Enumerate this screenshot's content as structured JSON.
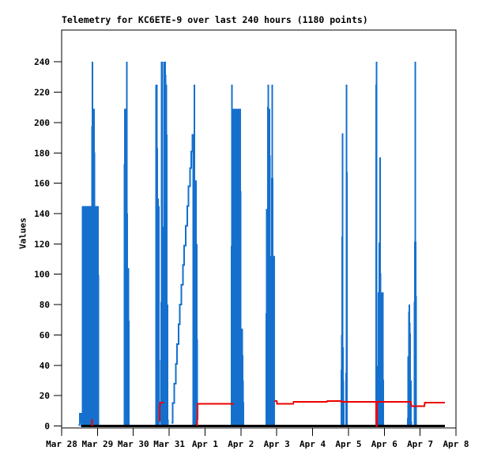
{
  "chart_data": {
    "type": "line",
    "title": "Telemetry for KC6ETE-9 over last 240 hours (1180 points)",
    "ylabel": "Values",
    "xlabel": "",
    "grid": false,
    "legend": "none",
    "ylim": [
      0,
      261
    ],
    "x_unit": "days since Mar 28",
    "xlim_days": [
      0,
      11
    ],
    "y_ticks": [
      0,
      20,
      40,
      60,
      80,
      100,
      120,
      140,
      160,
      180,
      200,
      220,
      240
    ],
    "x_tick_labels": [
      "Mar 28",
      "Mar 29",
      "Mar 30",
      "Mar 31",
      "Apr 1",
      "Apr 2",
      "Apr 3",
      "Apr 4",
      "Apr 5",
      "Apr 6",
      "Apr 7",
      "Apr 8"
    ],
    "colors": {
      "blue_channel": "#1570CD",
      "red_channel": "#EE0000",
      "black_channel": "#000000"
    },
    "series": [
      {
        "name": "channel-1-blue",
        "color": "#1570CD",
        "stroke_width": 2,
        "segments": [
          [
            [
              0.5,
              0
            ],
            [
              0.51,
              8
            ],
            [
              0.54,
              8
            ],
            [
              0.55,
              0
            ],
            [
              0.585,
              0
            ],
            [
              0.59,
              145
            ],
            [
              0.6,
              0
            ],
            [
              0.625,
              0
            ],
            [
              0.63,
              145
            ],
            [
              0.645,
              0
            ],
            [
              0.66,
              145
            ],
            [
              0.675,
              0
            ],
            [
              0.7,
              0
            ],
            [
              0.71,
              145
            ],
            [
              0.72,
              0
            ],
            [
              0.735,
              145
            ],
            [
              0.75,
              0
            ],
            [
              0.765,
              145
            ],
            [
              0.78,
              0
            ],
            [
              0.795,
              145
            ],
            [
              0.81,
              0
            ],
            [
              0.825,
              145
            ],
            [
              0.84,
              0
            ],
            [
              0.85,
              145
            ],
            [
              0.858,
              240
            ],
            [
              0.866,
              145
            ],
            [
              0.875,
              0
            ],
            [
              0.885,
              209
            ],
            [
              0.895,
              0
            ],
            [
              0.905,
              209
            ],
            [
              0.915,
              145
            ],
            [
              0.925,
              0
            ],
            [
              0.94,
              145
            ],
            [
              0.95,
              0
            ],
            [
              0.965,
              145
            ],
            [
              0.975,
              0
            ],
            [
              0.99,
              145
            ],
            [
              1.0,
              0
            ],
            [
              1.015,
              145
            ],
            [
              1.03,
              0
            ]
          ],
          [
            [
              1.75,
              0
            ],
            [
              1.76,
              209
            ],
            [
              1.77,
              0
            ],
            [
              1.78,
              209
            ],
            [
              1.79,
              0
            ],
            [
              1.8,
              209
            ],
            [
              1.805,
              120
            ],
            [
              1.81,
              0
            ],
            [
              1.82,
              240
            ],
            [
              1.83,
              0
            ],
            [
              1.845,
              104
            ],
            [
              1.855,
              0
            ],
            [
              1.865,
              104
            ],
            [
              1.875,
              0
            ]
          ],
          [
            [
              2.63,
              0
            ],
            [
              2.64,
              225
            ],
            [
              2.65,
              0
            ],
            [
              2.66,
              225
            ],
            [
              2.67,
              0
            ],
            [
              2.685,
              150
            ],
            [
              2.695,
              0
            ],
            [
              2.71,
              145
            ],
            [
              2.72,
              0
            ],
            [
              2.78,
              0
            ],
            [
              2.79,
              240
            ],
            [
              2.8,
              0
            ],
            [
              2.81,
              240
            ],
            [
              2.82,
              0
            ],
            [
              2.855,
              0
            ],
            [
              2.865,
              240
            ],
            [
              2.875,
              0
            ],
            [
              2.885,
              240
            ],
            [
              2.9,
              225
            ],
            [
              2.91,
              0
            ],
            [
              2.925,
              225
            ],
            [
              2.935,
              0
            ],
            [
              2.95,
              80
            ],
            [
              2.96,
              0
            ]
          ],
          [
            [
              3.06,
              2
            ],
            [
              3.1,
              2
            ],
            [
              3.1,
              15
            ],
            [
              3.14,
              15
            ],
            [
              3.14,
              28
            ],
            [
              3.18,
              28
            ],
            [
              3.18,
              41
            ],
            [
              3.22,
              41
            ],
            [
              3.22,
              54
            ],
            [
              3.26,
              54
            ],
            [
              3.26,
              67
            ],
            [
              3.3,
              67
            ],
            [
              3.3,
              80
            ],
            [
              3.34,
              80
            ],
            [
              3.34,
              93
            ],
            [
              3.38,
              93
            ],
            [
              3.38,
              106
            ],
            [
              3.42,
              106
            ],
            [
              3.42,
              119
            ],
            [
              3.46,
              119
            ],
            [
              3.46,
              132
            ],
            [
              3.5,
              132
            ],
            [
              3.5,
              145
            ],
            [
              3.54,
              145
            ],
            [
              3.54,
              158
            ],
            [
              3.58,
              158
            ],
            [
              3.58,
              170
            ],
            [
              3.62,
              170
            ],
            [
              3.62,
              181
            ],
            [
              3.65,
              181
            ],
            [
              3.65,
              192
            ],
            [
              3.67,
              192
            ],
            [
              3.675,
              0
            ],
            [
              3.685,
              162
            ],
            [
              3.695,
              0
            ],
            [
              3.705,
              225
            ],
            [
              3.715,
              0
            ],
            [
              3.725,
              162
            ],
            [
              3.735,
              0
            ],
            [
              3.75,
              162
            ],
            [
              3.76,
              0
            ],
            [
              3.77,
              120
            ],
            [
              3.78,
              0
            ]
          ],
          [
            [
              4.74,
              0
            ],
            [
              4.75,
              225
            ],
            [
              4.76,
              0
            ],
            [
              4.77,
              178
            ],
            [
              4.78,
              0
            ],
            [
              4.79,
              209
            ],
            [
              4.8,
              0
            ],
            [
              4.815,
              209
            ],
            [
              4.83,
              0
            ],
            [
              4.845,
              209
            ],
            [
              4.855,
              0
            ],
            [
              4.875,
              0
            ],
            [
              4.885,
              209
            ],
            [
              4.895,
              0
            ],
            [
              4.91,
              209
            ],
            [
              4.92,
              0
            ],
            [
              4.935,
              209
            ],
            [
              4.945,
              0
            ],
            [
              4.96,
              209
            ],
            [
              4.97,
              0
            ],
            [
              4.985,
              209
            ],
            [
              4.995,
              0
            ],
            [
              5.01,
              64
            ],
            [
              5.02,
              0
            ],
            [
              5.04,
              64
            ],
            [
              5.05,
              0
            ],
            [
              5.06,
              30
            ],
            [
              5.07,
              0
            ]
          ],
          [
            [
              5.71,
              0
            ],
            [
              5.72,
              143
            ],
            [
              5.73,
              0
            ],
            [
              5.74,
              143
            ],
            [
              5.75,
              0
            ],
            [
              5.76,
              225
            ],
            [
              5.77,
              0
            ],
            [
              5.78,
              209
            ],
            [
              5.79,
              0
            ],
            [
              5.8,
              209
            ],
            [
              5.81,
              112
            ],
            [
              5.82,
              0
            ],
            [
              5.835,
              112
            ],
            [
              5.85,
              0
            ],
            [
              5.865,
              112
            ],
            [
              5.875,
              225
            ],
            [
              5.885,
              112
            ],
            [
              5.895,
              0
            ],
            [
              5.905,
              112
            ],
            [
              5.915,
              0
            ],
            [
              5.925,
              112
            ],
            [
              5.935,
              0
            ]
          ],
          [
            [
              7.8,
              0
            ],
            [
              7.815,
              60
            ],
            [
              7.825,
              0
            ],
            [
              7.835,
              193
            ],
            [
              7.845,
              0
            ],
            [
              7.86,
              30
            ],
            [
              7.87,
              0
            ],
            [
              7.94,
              0
            ],
            [
              7.95,
              225
            ],
            [
              7.96,
              0
            ]
          ],
          [
            [
              8.76,
              0
            ],
            [
              8.77,
              0
            ],
            [
              8.78,
              240
            ],
            [
              8.79,
              0
            ],
            [
              8.83,
              0
            ],
            [
              8.84,
              88
            ],
            [
              8.85,
              0
            ],
            [
              8.865,
              121
            ],
            [
              8.875,
              88
            ],
            [
              8.885,
              177
            ],
            [
              8.895,
              0
            ],
            [
              8.91,
              88
            ],
            [
              8.92,
              0
            ],
            [
              8.935,
              88
            ],
            [
              8.945,
              0
            ],
            [
              8.96,
              88
            ],
            [
              8.97,
              0
            ]
          ],
          [
            [
              9.66,
              0
            ],
            [
              9.67,
              46
            ],
            [
              9.68,
              0
            ],
            [
              9.695,
              80
            ],
            [
              9.705,
              0
            ],
            [
              9.715,
              68
            ],
            [
              9.725,
              0
            ],
            [
              9.74,
              30
            ],
            [
              9.75,
              0
            ],
            [
              9.845,
              0
            ],
            [
              9.85,
              121
            ],
            [
              9.86,
              121
            ],
            [
              9.865,
              240
            ],
            [
              9.87,
              121
            ],
            [
              9.88,
              121
            ],
            [
              9.885,
              0
            ]
          ]
        ]
      },
      {
        "name": "channel-2-black",
        "color": "#000000",
        "stroke_width": 3,
        "segments": [
          [
            [
              0.55,
              0
            ],
            [
              10.69,
              0
            ]
          ]
        ]
      },
      {
        "name": "channel-3-red",
        "color": "#EE0000",
        "stroke_width": 2,
        "segments": [
          [
            [
              0.845,
              0
            ],
            [
              0.85,
              4.5
            ],
            [
              0.855,
              0
            ]
          ],
          [
            [
              2.735,
              3
            ],
            [
              2.74,
              15.5
            ],
            [
              2.85,
              15.5
            ]
          ],
          [
            [
              3.785,
              0
            ],
            [
              3.79,
              14.5
            ],
            [
              4.8,
              14.5
            ]
          ],
          [
            [
              5.94,
              16.4
            ],
            [
              6.0,
              16.4
            ],
            [
              6.01,
              14.6
            ],
            [
              6.46,
              14.6
            ],
            [
              6.47,
              15.8
            ],
            [
              7.4,
              15.8
            ],
            [
              7.41,
              16.5
            ],
            [
              7.8,
              16.5
            ],
            [
              7.81,
              15.8
            ],
            [
              8.775,
              15.8
            ],
            [
              8.78,
              0
            ],
            [
              8.795,
              0
            ],
            [
              8.8,
              15.8
            ],
            [
              9.745,
              15.8
            ],
            [
              9.755,
              13
            ],
            [
              10.12,
              13
            ],
            [
              10.13,
              15.5
            ],
            [
              10.69,
              15.5
            ]
          ]
        ]
      }
    ]
  }
}
